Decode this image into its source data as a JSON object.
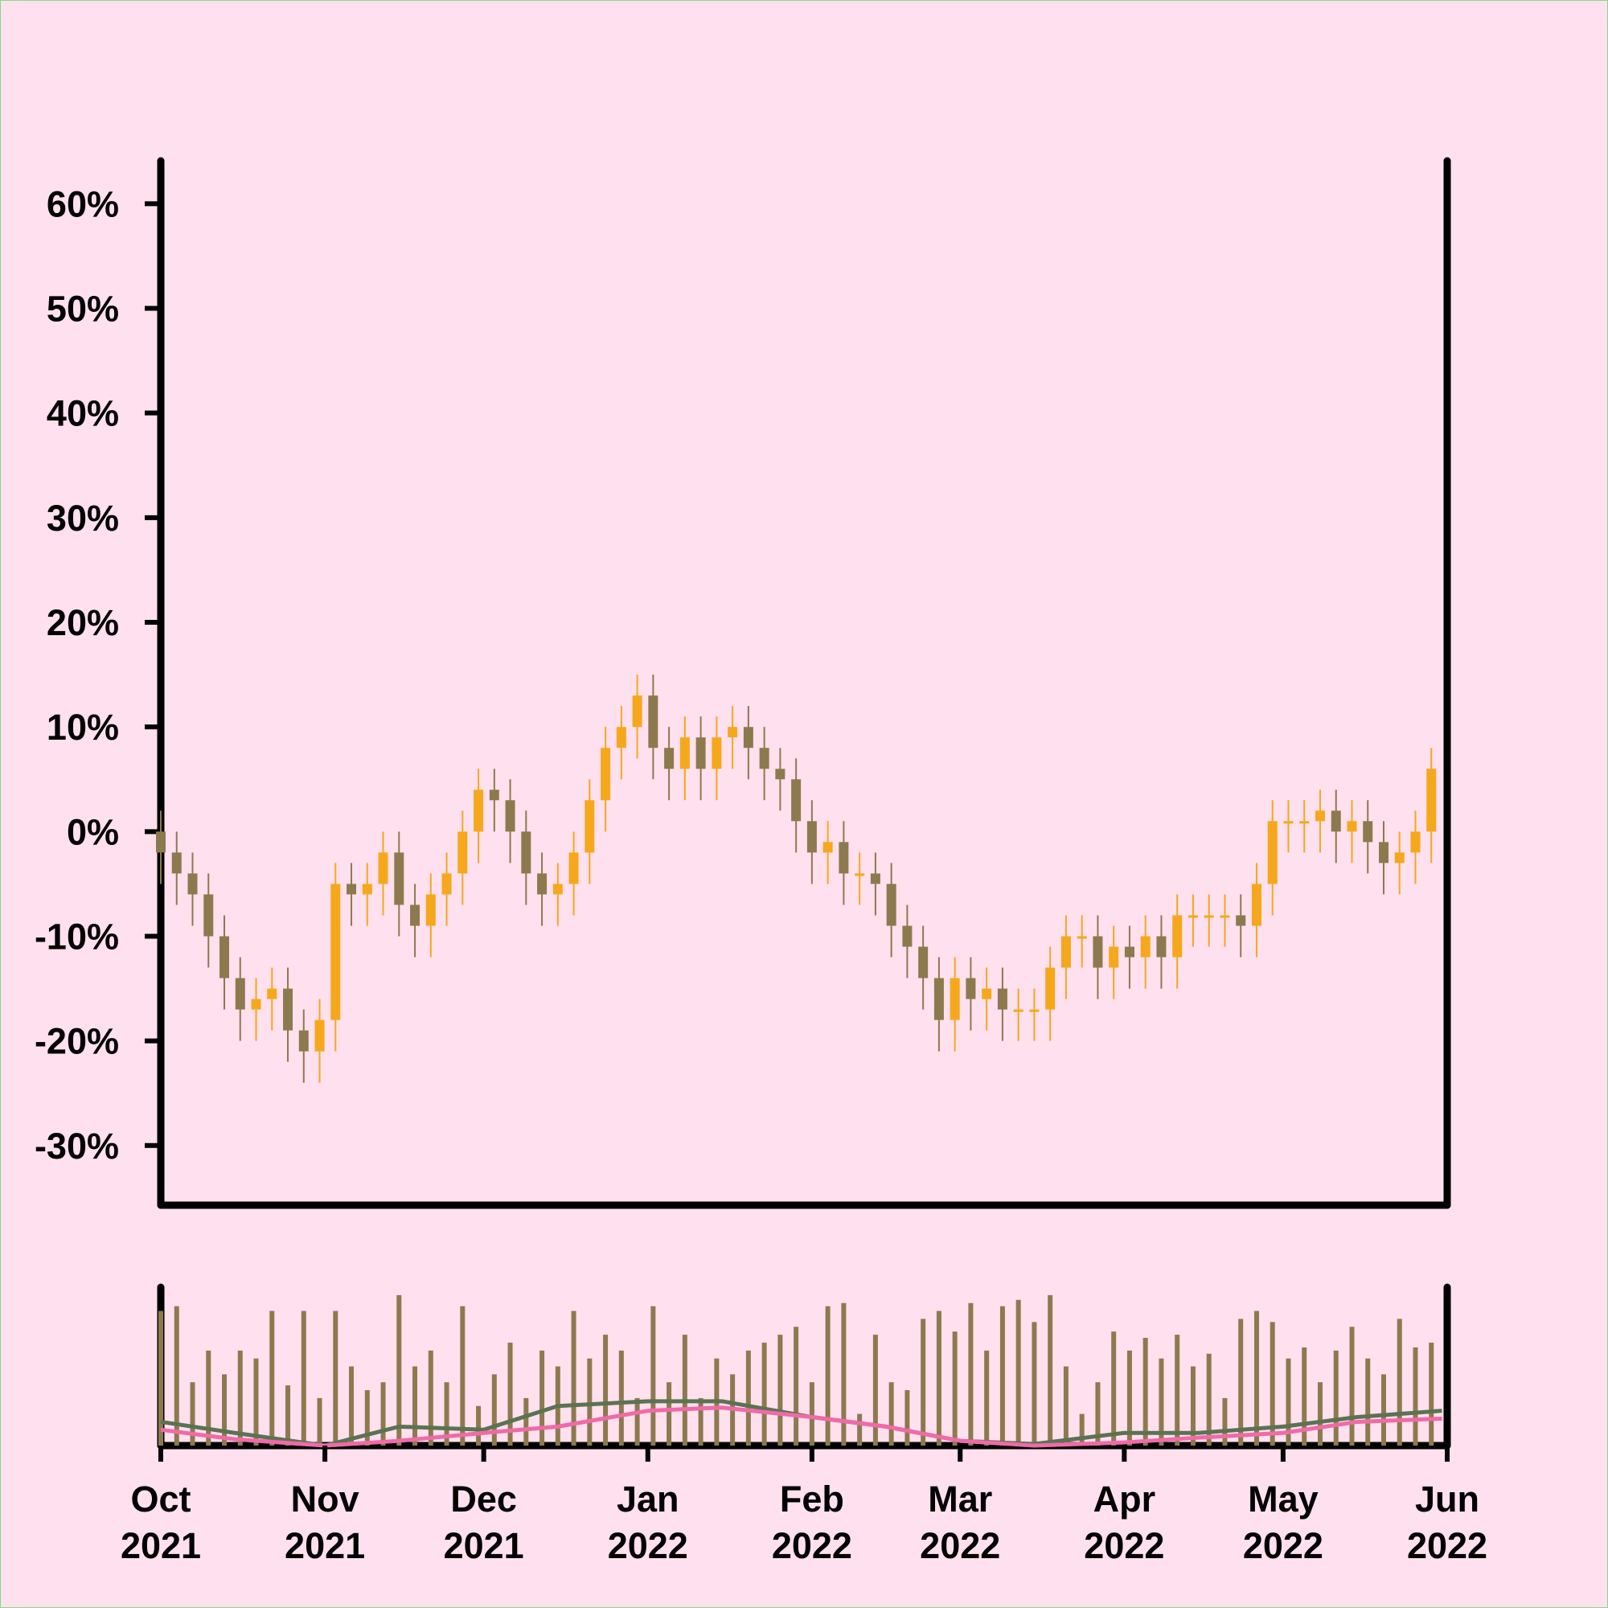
{
  "chart_data": [
    {
      "type": "candlestick",
      "x": [
        "2021-10-01",
        "2021-10-04",
        "2021-10-07",
        "2021-10-10",
        "2021-10-13",
        "2021-10-16",
        "2021-10-19",
        "2021-10-22",
        "2021-10-25",
        "2021-10-28",
        "2021-10-31",
        "2021-11-03",
        "2021-11-06",
        "2021-11-09",
        "2021-11-12",
        "2021-11-15",
        "2021-11-18",
        "2021-11-21",
        "2021-11-24",
        "2021-11-27",
        "2021-11-30",
        "2021-12-03",
        "2021-12-06",
        "2021-12-09",
        "2021-12-12",
        "2021-12-15",
        "2021-12-18",
        "2021-12-21",
        "2021-12-24",
        "2021-12-27",
        "2021-12-30",
        "2022-01-02",
        "2022-01-05",
        "2022-01-08",
        "2022-01-11",
        "2022-01-14",
        "2022-01-17",
        "2022-01-20",
        "2022-01-23",
        "2022-01-26",
        "2022-01-29",
        "2022-02-01",
        "2022-02-04",
        "2022-02-07",
        "2022-02-10",
        "2022-02-13",
        "2022-02-16",
        "2022-02-19",
        "2022-02-22",
        "2022-02-25",
        "2022-02-28",
        "2022-03-03",
        "2022-03-06",
        "2022-03-09",
        "2022-03-12",
        "2022-03-15",
        "2022-03-18",
        "2022-03-21",
        "2022-03-24",
        "2022-03-27",
        "2022-03-30",
        "2022-04-02",
        "2022-04-05",
        "2022-04-08",
        "2022-04-11",
        "2022-04-14",
        "2022-04-17",
        "2022-04-20",
        "2022-04-23",
        "2022-04-26",
        "2022-04-29",
        "2022-05-02",
        "2022-05-05",
        "2022-05-08",
        "2022-05-11",
        "2022-05-14",
        "2022-05-17",
        "2022-05-20",
        "2022-05-23",
        "2022-05-26",
        "2022-05-29"
      ],
      "open": [
        0,
        -2,
        -4,
        -6,
        -10,
        -14,
        -17,
        -16,
        -15,
        -19,
        -21,
        -18,
        -5,
        -6,
        -5,
        -2,
        -7,
        -9,
        -6,
        -4,
        0,
        4,
        3,
        0,
        -4,
        -6,
        -5,
        -2,
        3,
        8,
        10,
        13,
        8,
        6,
        9,
        6,
        9,
        10,
        8,
        6,
        5,
        1,
        -2,
        -1,
        -4,
        -4,
        -5,
        -9,
        -11,
        -14,
        -18,
        -14,
        -16,
        -15,
        -17,
        -17,
        -17,
        -13,
        -10,
        -10,
        -13,
        -11,
        -12,
        -10,
        -12,
        -8,
        -8,
        -8,
        -8,
        -9,
        -5,
        1,
        1,
        1,
        2,
        0,
        1,
        -1,
        -3,
        -2,
        0
      ],
      "high": [
        2,
        0,
        -2,
        -4,
        -8,
        -12,
        -14,
        -13,
        -13,
        -17,
        -16,
        -3,
        -3,
        -3,
        0,
        0,
        -5,
        -4,
        -2,
        2,
        6,
        6,
        5,
        2,
        -2,
        -3,
        0,
        5,
        10,
        12,
        15,
        15,
        10,
        11,
        11,
        11,
        12,
        12,
        10,
        8,
        7,
        3,
        1,
        1,
        -2,
        -2,
        -3,
        -7,
        -9,
        -12,
        -12,
        -12,
        -13,
        -13,
        -15,
        -15,
        -11,
        -8,
        -8,
        -8,
        -9,
        -9,
        -8,
        -8,
        -6,
        -6,
        -6,
        -6,
        -6,
        -3,
        3,
        3,
        3,
        4,
        4,
        3,
        3,
        1,
        0,
        2,
        8
      ],
      "low": [
        -5,
        -7,
        -9,
        -13,
        -17,
        -20,
        -20,
        -19,
        -22,
        -24,
        -24,
        -21,
        -9,
        -9,
        -8,
        -10,
        -12,
        -12,
        -9,
        -7,
        -3,
        0,
        -3,
        -7,
        -9,
        -9,
        -8,
        -5,
        0,
        5,
        7,
        5,
        3,
        3,
        3,
        3,
        6,
        5,
        3,
        2,
        -2,
        -5,
        -5,
        -7,
        -7,
        -8,
        -12,
        -14,
        -17,
        -21,
        -21,
        -19,
        -19,
        -20,
        -20,
        -20,
        -20,
        -16,
        -13,
        -16,
        -16,
        -15,
        -15,
        -15,
        -15,
        -11,
        -11,
        -11,
        -12,
        -12,
        -8,
        -2,
        -2,
        -2,
        -3,
        -3,
        -4,
        -6,
        -6,
        -5,
        -3
      ],
      "close": [
        -2,
        -4,
        -6,
        -10,
        -14,
        -17,
        -16,
        -15,
        -19,
        -21,
        -18,
        -5,
        -6,
        -5,
        -2,
        -7,
        -9,
        -6,
        -4,
        0,
        4,
        3,
        0,
        -4,
        -6,
        -5,
        -2,
        3,
        8,
        10,
        13,
        8,
        6,
        9,
        6,
        9,
        10,
        8,
        6,
        5,
        1,
        -2,
        -1,
        -4,
        -4,
        -5,
        -9,
        -11,
        -14,
        -18,
        -14,
        -16,
        -15,
        -17,
        -17,
        -17,
        -13,
        -10,
        -10,
        -13,
        -11,
        -12,
        -10,
        -12,
        -8,
        -8,
        -8,
        -8,
        -9,
        -5,
        1,
        1,
        1,
        2,
        0,
        1,
        -1,
        -3,
        -2,
        0,
        6
      ],
      "up_color": "#f5a81c",
      "down_color": "#8c7a4e",
      "xlim": [
        "2021-10-01",
        "2022-06-01"
      ],
      "ylim": [
        -35.7,
        64.1
      ],
      "yticks": [
        {
          "value": -30,
          "label": "-30%"
        },
        {
          "value": -20,
          "label": "-20%"
        },
        {
          "value": -10,
          "label": "-10%"
        },
        {
          "value": 0,
          "label": "0%"
        },
        {
          "value": 10,
          "label": "10%"
        },
        {
          "value": 20,
          "label": "20%"
        },
        {
          "value": 30,
          "label": "30%"
        },
        {
          "value": 40,
          "label": "40%"
        },
        {
          "value": 50,
          "label": "50%"
        },
        {
          "value": 60,
          "label": "60%"
        }
      ]
    },
    {
      "type": "bar",
      "values": [
        85,
        88,
        40,
        60,
        45,
        60,
        55,
        85,
        38,
        85,
        30,
        85,
        50,
        35,
        40,
        95,
        50,
        60,
        40,
        88,
        25,
        45,
        65,
        30,
        60,
        50,
        85,
        55,
        70,
        60,
        30,
        88,
        40,
        70,
        30,
        55,
        45,
        60,
        65,
        70,
        75,
        40,
        88,
        90,
        20,
        70,
        40,
        35,
        80,
        85,
        72,
        90,
        60,
        88,
        92,
        78,
        95,
        50,
        20,
        40,
        72,
        60,
        68,
        55,
        70,
        50,
        58,
        30,
        80,
        85,
        78,
        55,
        62,
        40,
        60,
        75,
        55,
        45,
        80,
        62,
        65
      ],
      "color": "#8c7a4e",
      "ylim": [
        0,
        100
      ],
      "series": [
        {
          "color": "#5a7352",
          "x": [
            "2021-10-01",
            "2021-10-15",
            "2021-11-01",
            "2021-11-15",
            "2021-12-01",
            "2021-12-15",
            "2022-01-01",
            "2022-01-15",
            "2022-02-01",
            "2022-02-15",
            "2022-03-01",
            "2022-03-15",
            "2022-04-01",
            "2022-04-15",
            "2022-05-01",
            "2022-05-15",
            "2022-05-31"
          ],
          "values": [
            15,
            8,
            0,
            12,
            10,
            25,
            28,
            28,
            18,
            12,
            3,
            1,
            8,
            8,
            12,
            18,
            22
          ]
        },
        {
          "color": "#f06aa8",
          "x": [
            "2021-10-01",
            "2021-10-15",
            "2021-11-01",
            "2021-11-15",
            "2021-12-01",
            "2021-12-15",
            "2022-01-01",
            "2022-01-15",
            "2022-02-01",
            "2022-02-15",
            "2022-03-01",
            "2022-03-15",
            "2022-04-01",
            "2022-04-15",
            "2022-05-01",
            "2022-05-15",
            "2022-05-31"
          ],
          "values": [
            10,
            4,
            0,
            3,
            8,
            12,
            22,
            24,
            18,
            12,
            3,
            0,
            2,
            5,
            8,
            15,
            17
          ]
        }
      ],
      "xlim": [
        "2021-10-01",
        "2022-06-01"
      ],
      "xticks": [
        {
          "value": "2021-10-01",
          "label": [
            "Oct",
            "2021"
          ]
        },
        {
          "value": "2021-11-01",
          "label": [
            "Nov",
            "2021"
          ]
        },
        {
          "value": "2021-12-01",
          "label": [
            "Dec",
            "2021"
          ]
        },
        {
          "value": "2022-01-01",
          "label": [
            "Jan",
            "2022"
          ]
        },
        {
          "value": "2022-02-01",
          "label": [
            "Feb",
            "2022"
          ]
        },
        {
          "value": "2022-03-01",
          "label": [
            "Mar",
            "2022"
          ]
        },
        {
          "value": "2022-04-01",
          "label": [
            "Apr",
            "2022"
          ]
        },
        {
          "value": "2022-05-01",
          "label": [
            "May",
            "2022"
          ]
        },
        {
          "value": "2022-06-01",
          "label": [
            "Jun",
            "2022"
          ]
        }
      ]
    }
  ]
}
